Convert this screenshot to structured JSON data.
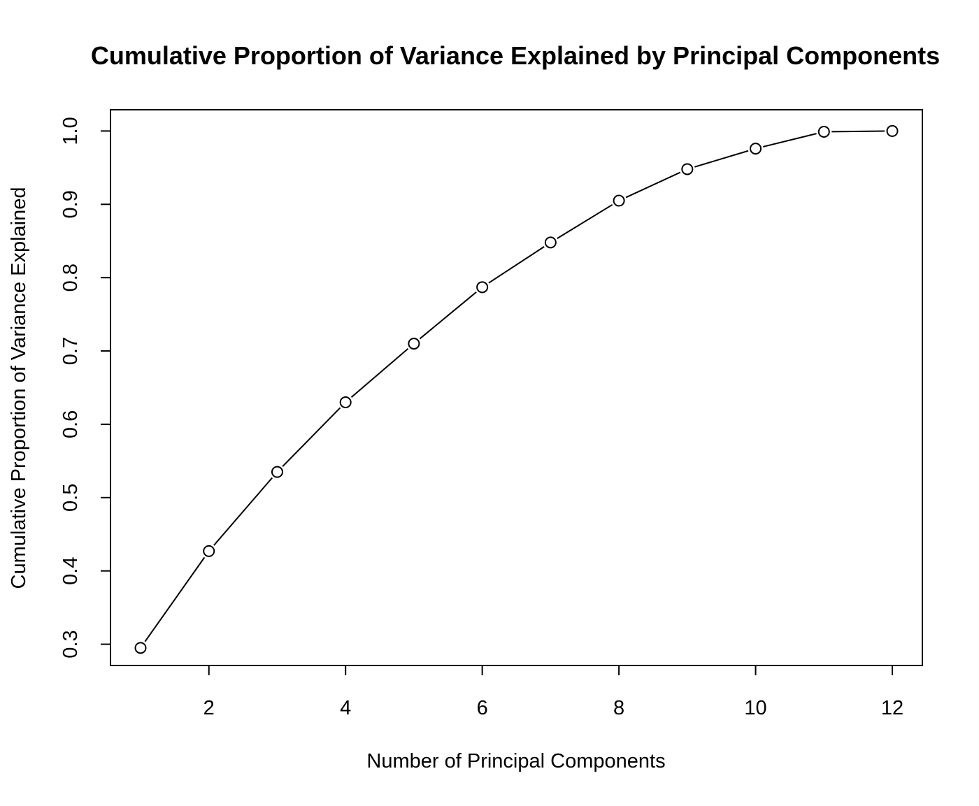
{
  "chart_data": {
    "type": "line",
    "title": "Cumulative Proportion of Variance Explained by Principal Components",
    "xlabel": "Number of Principal Components",
    "ylabel": "Cumulative Proportion of Variance Explained",
    "x": [
      1,
      2,
      3,
      4,
      5,
      6,
      7,
      8,
      9,
      10,
      11,
      12
    ],
    "y": [
      0.295,
      0.427,
      0.535,
      0.63,
      0.71,
      0.787,
      0.848,
      0.905,
      0.948,
      0.976,
      0.999,
      1.0
    ],
    "xlim": [
      0.56,
      12.44
    ],
    "ylim": [
      0.271,
      1.029
    ],
    "x_ticks": [
      2,
      4,
      6,
      8,
      10,
      12
    ],
    "x_tick_labels": [
      "2",
      "4",
      "6",
      "8",
      "10",
      "12"
    ],
    "y_ticks": [
      0.3,
      0.4,
      0.5,
      0.6,
      0.7,
      0.8,
      0.9,
      1.0
    ],
    "y_tick_labels": [
      "0.3",
      "0.4",
      "0.5",
      "0.6",
      "0.7",
      "0.8",
      "0.9",
      "1.0"
    ],
    "marker": "open-circle",
    "grid": false,
    "legend": "none",
    "colors": {
      "line": "#000000",
      "marker_fill": "#ffffff"
    }
  }
}
